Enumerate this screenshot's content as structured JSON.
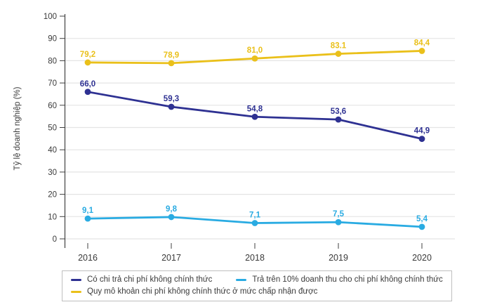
{
  "chart_data": {
    "type": "line",
    "categories": [
      "2016",
      "2017",
      "2018",
      "2019",
      "2020"
    ],
    "title": "",
    "xlabel": "",
    "ylabel": "Tỷ lệ doanh nghiệp (%)",
    "ylim": [
      0,
      100
    ],
    "yticks": [
      0,
      10,
      20,
      30,
      40,
      50,
      60,
      70,
      80,
      90,
      100
    ],
    "grid": true,
    "legend_position": "bottom",
    "series": [
      {
        "name": "Có chi trả chi phí không chính thức",
        "color": "#2e3192",
        "values": [
          66.0,
          59.3,
          54.8,
          53.6,
          44.9
        ],
        "labels": [
          "66,0",
          "59,3",
          "54,8",
          "53,6",
          "44,9"
        ]
      },
      {
        "name": "Trả trên 10% doanh thu cho chi phí không chính thức",
        "color": "#29abe2",
        "values": [
          9.1,
          9.8,
          7.1,
          7.5,
          5.4
        ],
        "labels": [
          "9,1",
          "9,8",
          "7,1",
          "7,5",
          "5,4"
        ]
      },
      {
        "name": "Quy mô khoản chi phí không chính thức ở mức chấp nhận được",
        "color": "#eac01a",
        "values": [
          79.2,
          78.9,
          81.0,
          83.1,
          84.4
        ],
        "labels": [
          "79,2",
          "78,9",
          "81,0",
          "83.1",
          "84,4"
        ]
      }
    ]
  }
}
